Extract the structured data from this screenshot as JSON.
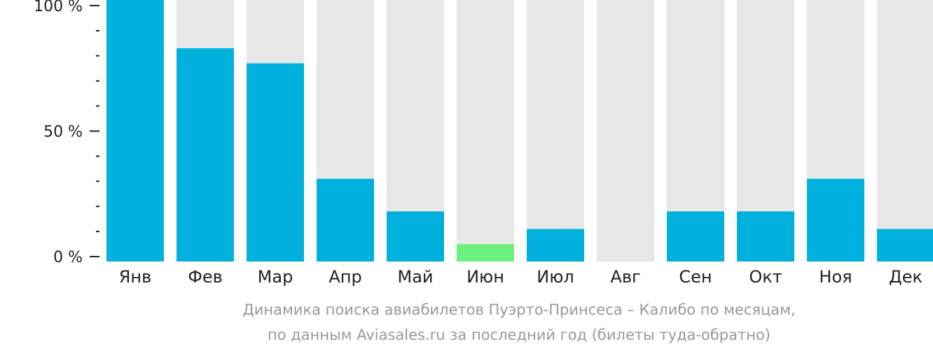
{
  "chart_data": {
    "type": "bar",
    "categories": [
      "Янв",
      "Фев",
      "Мар",
      "Апр",
      "Май",
      "Июн",
      "Июл",
      "Авг",
      "Сен",
      "Окт",
      "Ноя",
      "Дек"
    ],
    "values": [
      100,
      83,
      77,
      31,
      18,
      5,
      11,
      0,
      18,
      18,
      31,
      11
    ],
    "ylim": [
      0,
      100
    ],
    "yticks": [
      {
        "value": 100,
        "label": "100 %"
      },
      {
        "value": 50,
        "label": "50 %"
      },
      {
        "value": 0,
        "label": "0 %"
      }
    ],
    "minor_tick_step": 10,
    "highlight_category": "Июн",
    "colors": {
      "bar": "#00b0dd",
      "highlight": "#6ef07f",
      "background_bar": "#e8e8e8",
      "axis": "#222222"
    },
    "caption": [
      "Динамика поиска авиабилетов Пуэрто-Принсеса – Калибо по месяцам,",
      "по данным Aviasales.ru за последний год (билеты туда-обратно)"
    ]
  }
}
